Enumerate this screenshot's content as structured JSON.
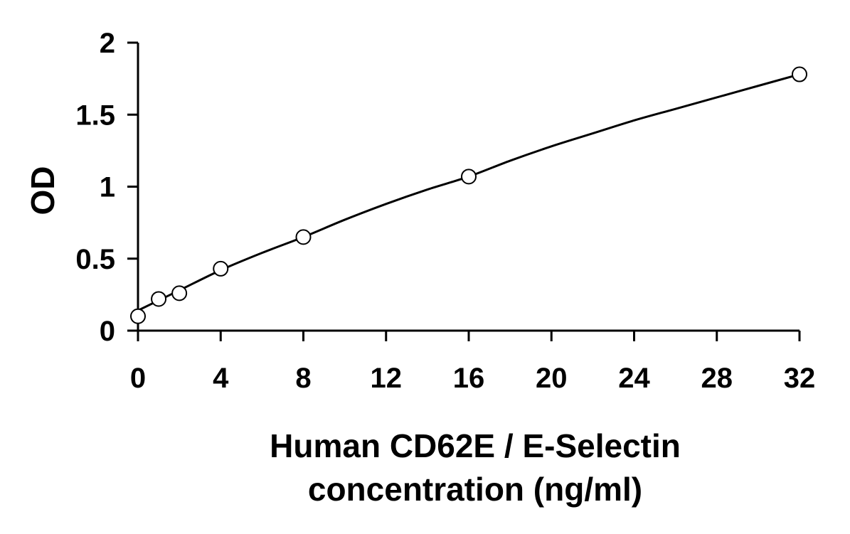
{
  "chart_data": {
    "type": "scatter",
    "title": "",
    "xlabel": "Human CD62E / E-Selectin concentration (ng/ml)",
    "xlabel_lines": [
      "Human CD62E / E-Selectin",
      "concentration (ng/ml)"
    ],
    "ylabel": "OD",
    "xlim": [
      0,
      32
    ],
    "ylim": [
      0,
      2
    ],
    "x_ticks": [
      0,
      4,
      8,
      12,
      16,
      20,
      24,
      28,
      32
    ],
    "y_ticks": [
      0,
      0.5,
      1,
      1.5,
      2
    ],
    "x_tick_labels": [
      "0",
      "4",
      "8",
      "12",
      "16",
      "20",
      "24",
      "28",
      "32"
    ],
    "y_tick_labels": [
      "0",
      "0.5",
      "1",
      "1.5",
      "2"
    ],
    "grid": false,
    "legend": "none",
    "series": [
      {
        "marker": "open-circle",
        "x": [
          0,
          1,
          2,
          4,
          8,
          16,
          32
        ],
        "y": [
          0.1,
          0.22,
          0.26,
          0.43,
          0.65,
          1.07,
          1.78
        ]
      }
    ],
    "fit_curve": {
      "x": [
        0,
        2,
        4,
        6,
        8,
        10,
        12,
        14,
        16,
        18,
        20,
        22,
        24,
        26,
        28,
        30,
        32
      ],
      "y": [
        0.14,
        0.28,
        0.42,
        0.54,
        0.65,
        0.77,
        0.88,
        0.98,
        1.07,
        1.18,
        1.28,
        1.37,
        1.46,
        1.54,
        1.62,
        1.7,
        1.78
      ]
    },
    "colors": {
      "axis": "#000000",
      "line": "#000000",
      "marker_fill": "#ffffff"
    }
  }
}
